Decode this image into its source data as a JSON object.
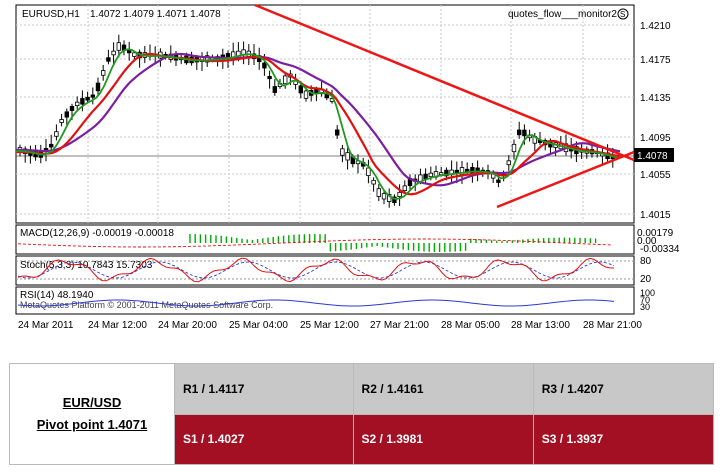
{
  "chart": {
    "header": {
      "symbol": "EURUSD,H1",
      "ohlc": "1.4072 1.4079 1.4071 1.4078",
      "indicator": "quotes_flow___monitor2"
    },
    "price_ticks": [
      "1.4210",
      "1.4175",
      "1.4135",
      "1.4095",
      "1.4055",
      "1.4015"
    ],
    "current_price": "1.4078",
    "macd": {
      "label": "MACD(12,26,9) -0.00019 -0.00018",
      "ticks": [
        "0.00179",
        "0.00",
        "-0.00334"
      ]
    },
    "stoch": {
      "label": "Stoch(5,3,3) 10.7843 15.7303",
      "ticks": [
        "80",
        "20"
      ]
    },
    "rsi": {
      "label": "RSI(14) 48.1940",
      "ticks": [
        "100",
        "70",
        "30"
      ]
    },
    "copyright": "MetaQuotes Platform © 2001-2011 MetaQuotes Software Corp.",
    "time_ticks": [
      "24 Mar 2011",
      "24 Mar 12:00",
      "24 Mar 20:00",
      "25 Mar 04:00",
      "25 Mar 12:00",
      "27 Mar 21:00",
      "28 Mar 05:00",
      "28 Mar 13:00",
      "28 Mar 21:00"
    ],
    "colors": {
      "ma_fast": "#1f9a1f",
      "ma_mid": "#e31010",
      "ma_slow": "#7b1fa2",
      "trendline": "#f01515",
      "macd_hist": "#00aa00",
      "macd_signal": "#e31010",
      "stoch_main": "#e31010",
      "stoch_signal": "#2b3bd6",
      "rsi": "#2b3bd6"
    }
  },
  "pivot": {
    "pair": "EUR/USD",
    "pivot_label": "Pivot point 1.4071",
    "resistance": [
      "R1 / 1.4117",
      "R2 / 1.4161",
      "R3 / 1.4207"
    ],
    "support": [
      "S1 / 1.4027",
      "S2 / 1.3981",
      "S3 / 1.3937"
    ],
    "colors": {
      "resistance_bg": "#c8c8c8",
      "support_bg": "#a30f23"
    }
  }
}
